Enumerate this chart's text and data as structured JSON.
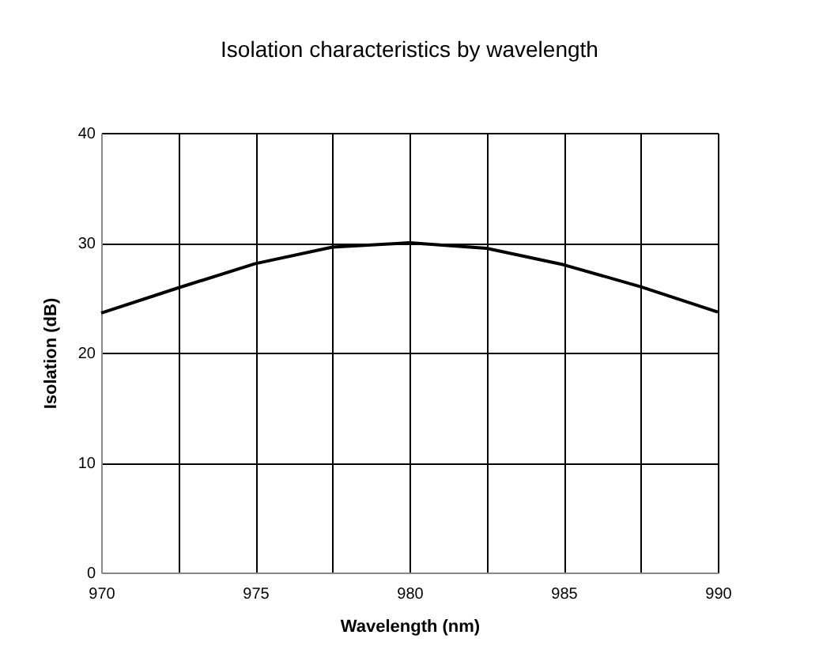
{
  "chart_data": {
    "type": "line",
    "title": "Isolation characteristics by wavelength",
    "xlabel": "Wavelength (nm)",
    "ylabel": "Isolation (dB)",
    "x": [
      970,
      972.5,
      975,
      977.5,
      980,
      982.5,
      985,
      987.5,
      990
    ],
    "series": [
      {
        "color": "#000000",
        "values": [
          23.6,
          25.9,
          28.1,
          29.6,
          30,
          29.5,
          28.0,
          26.0,
          23.7
        ]
      }
    ],
    "xlim": [
      970,
      990
    ],
    "ylim": [
      0,
      40
    ],
    "xticks": [
      970,
      {
        "value": 972.5,
        "label": null
      },
      975,
      {
        "value": 977.5,
        "label": null
      },
      980,
      {
        "value": 982.5,
        "label": null
      },
      985,
      {
        "value": 987.5,
        "label": null
      },
      990
    ],
    "yticks": [
      0,
      10,
      20,
      30,
      40
    ],
    "grid": true,
    "marker": "none",
    "line_style": "solid",
    "legend": false
  }
}
